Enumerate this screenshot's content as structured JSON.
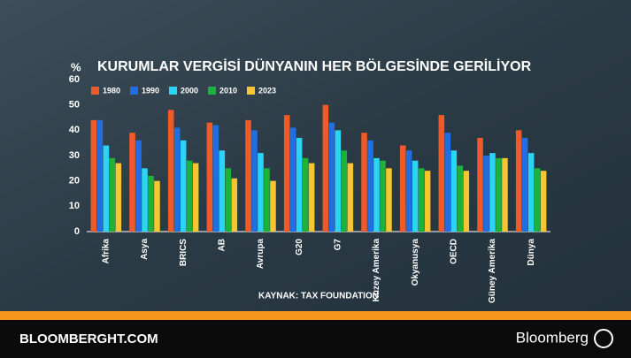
{
  "chart_data": {
    "type": "bar",
    "title": "KURUMLAR VERGİSİ DÜNYANIN HER BÖLGESİNDE GERİLİYOR",
    "y_label": "%",
    "source": "KAYNAK: TAX FOUNDATION",
    "categories": [
      "Afrika",
      "Asya",
      "BRICS",
      "AB",
      "Avrupa",
      "G20",
      "G7",
      "Kuzey Amerika",
      "Okyanusya",
      "OECD",
      "Güney Amerika",
      "Dünya"
    ],
    "series": [
      {
        "name": "1980",
        "color": "#f05a28",
        "values": [
          44,
          39,
          48,
          43,
          44,
          46,
          50,
          39,
          34,
          46,
          37,
          40
        ]
      },
      {
        "name": "1990",
        "color": "#1f6fe3",
        "values": [
          44,
          36,
          41,
          42,
          40,
          41,
          43,
          36,
          32,
          39,
          30,
          37
        ]
      },
      {
        "name": "2000",
        "color": "#2ad4f5",
        "values": [
          34,
          25,
          36,
          32,
          31,
          37,
          40,
          29,
          28,
          32,
          31,
          31
        ]
      },
      {
        "name": "2010",
        "color": "#1db33a",
        "values": [
          29,
          22,
          28,
          25,
          25,
          29,
          32,
          28,
          25,
          26,
          29,
          25
        ]
      },
      {
        "name": "2023",
        "color": "#f7c531",
        "values": [
          27,
          20,
          27,
          21,
          20,
          27,
          27,
          25,
          24,
          24,
          29,
          24
        ]
      }
    ],
    "ylim": [
      0,
      60
    ],
    "yticks": [
      0,
      10,
      20,
      30,
      40,
      50,
      60
    ],
    "grid": false,
    "legend": "top-left"
  },
  "footer": {
    "site": "BLOOMBERGHT.COM",
    "brand": "Bloomberg"
  }
}
